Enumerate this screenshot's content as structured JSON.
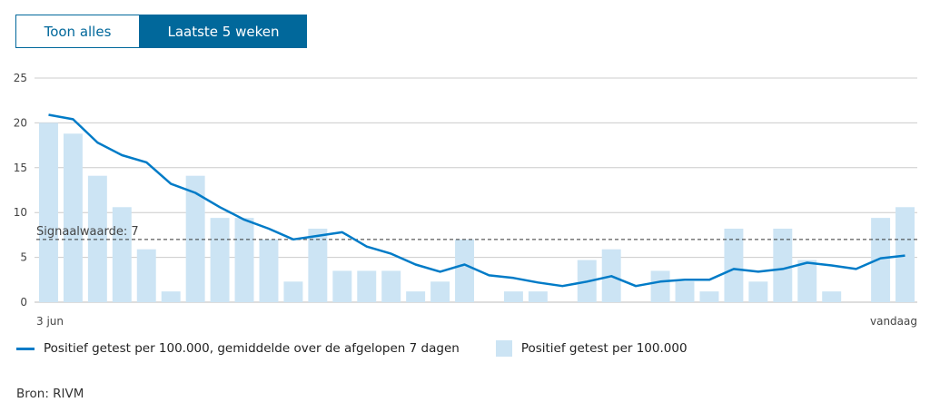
{
  "toggle": {
    "show_all_label": "Toon alles",
    "last_5_weeks_label": "Laatste 5 weken",
    "active": "Laatste 5 weken"
  },
  "chart_data": {
    "type": "bar+line",
    "ylim": [
      0,
      25
    ],
    "yticks": [
      "0",
      "5",
      "10",
      "15",
      "20",
      "25"
    ],
    "x_start_label": "3 jun",
    "x_end_label": "vandaag",
    "grid": true,
    "threshold": {
      "label": "Signaalwaarde: 7",
      "value": 7
    },
    "series": [
      {
        "name": "Positief getest per 100.000",
        "type": "bar",
        "color": "#cce4f4",
        "values": [
          20.0,
          18.8,
          14.1,
          10.6,
          5.9,
          1.2,
          14.1,
          9.4,
          9.4,
          7.0,
          2.3,
          8.2,
          3.5,
          3.5,
          3.5,
          1.2,
          2.3,
          7.0,
          0,
          1.2,
          1.2,
          0,
          4.7,
          5.9,
          0,
          3.5,
          2.3,
          1.2,
          8.2,
          2.3,
          8.2,
          4.7,
          1.2,
          0,
          9.4,
          10.6
        ]
      },
      {
        "name": "Positief getest per 100.000, gemiddelde over de afgelopen 7 dagen",
        "type": "line",
        "color": "#007bc7",
        "values": [
          20.9,
          20.4,
          17.8,
          16.4,
          15.6,
          13.2,
          12.2,
          10.6,
          9.2,
          8.2,
          7.0,
          7.4,
          7.8,
          6.2,
          5.4,
          4.2,
          3.4,
          4.2,
          3.0,
          2.7,
          2.2,
          1.8,
          2.3,
          2.9,
          1.8,
          2.3,
          2.5,
          2.5,
          3.7,
          3.4,
          3.7,
          4.4,
          4.1,
          3.7,
          4.9,
          5.2
        ]
      }
    ],
    "legend_position": "bottom-left"
  },
  "legend": {
    "line_label": "Positief getest per 100.000, gemiddelde over de afgelopen 7 dagen",
    "bar_label": "Positief getest per 100.000"
  },
  "source": "Bron: RIVM"
}
